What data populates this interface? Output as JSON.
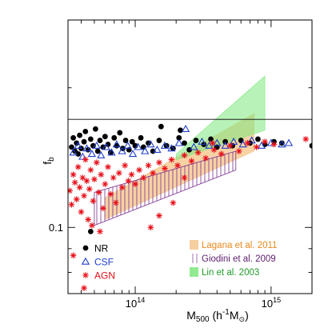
{
  "chart_data": {
    "type": "scatter",
    "xlabel": {
      "base": "M",
      "sub": "500",
      "rest_open": " (h",
      "sup": "-1",
      "unit": "M",
      "rest_close": ")"
    },
    "ylabel": {
      "base": "f",
      "sub": "b"
    },
    "x_scale": "log",
    "y_scale": "log",
    "xlim": [
      32000000000000.0,
      2000000000000000.0
    ],
    "ylim": [
      0.072,
      0.28
    ],
    "x_ticks": [
      {
        "value": 100000000000000.0,
        "base": "10",
        "exp": "14"
      },
      {
        "value": 1000000000000000.0,
        "base": "10",
        "exp": "15"
      }
    ],
    "y_ticks": [
      {
        "value": 0.1,
        "label": "0.1"
      }
    ],
    "cosmic_fb_line": 0.171,
    "series": [
      {
        "name": "NR",
        "marker": "filled-circle",
        "color": "#000000",
        "points": [
          [
            34000000000000.0,
            0.149
          ],
          [
            35000000000000.0,
            0.156
          ],
          [
            36000000000000.0,
            0.146
          ],
          [
            37000000000000.0,
            0.152
          ],
          [
            38000000000000.0,
            0.144
          ],
          [
            39000000000000.0,
            0.158
          ],
          [
            40000000000000.0,
            0.148
          ],
          [
            42000000000000.0,
            0.153
          ],
          [
            43000000000000.0,
            0.161
          ],
          [
            45000000000000.0,
            0.147
          ],
          [
            47000000000000.0,
            0.155
          ],
          [
            49000000000000.0,
            0.15
          ],
          [
            51000000000000.0,
            0.163
          ],
          [
            53000000000000.0,
            0.146
          ],
          [
            55000000000000.0,
            0.154
          ],
          [
            58000000000000.0,
            0.149
          ],
          [
            60000000000000.0,
            0.157
          ],
          [
            63000000000000.0,
            0.151
          ],
          [
            66000000000000.0,
            0.145
          ],
          [
            70000000000000.0,
            0.156
          ],
          [
            73000000000000.0,
            0.15
          ],
          [
            77000000000000.0,
            0.16
          ],
          [
            81000000000000.0,
            0.148
          ],
          [
            85000000000000.0,
            0.154
          ],
          [
            90000000000000.0,
            0.147
          ],
          [
            95000000000000.0,
            0.153
          ],
          [
            100000000000000.0,
            0.15
          ],
          [
            110000000000000.0,
            0.156
          ],
          [
            115000000000000.0,
            0.149
          ],
          [
            125000000000000.0,
            0.152
          ],
          [
            135000000000000.0,
            0.146
          ],
          [
            150000000000000.0,
            0.154
          ],
          [
            170000000000000.0,
            0.15
          ],
          [
            190000000000000.0,
            0.148
          ],
          [
            210000000000000.0,
            0.156
          ],
          [
            230000000000000.0,
            0.152
          ],
          [
            250000000000000.0,
            0.147
          ],
          [
            280000000000000.0,
            0.154
          ],
          [
            320000000000000.0,
            0.151
          ],
          [
            360000000000000.0,
            0.155
          ],
          [
            400000000000000.0,
            0.149
          ],
          [
            460000000000000.0,
            0.153
          ],
          [
            520000000000000.0,
            0.15
          ],
          [
            600000000000000.0,
            0.154
          ],
          [
            700000000000000.0,
            0.152
          ],
          [
            800000000000000.0,
            0.155
          ],
          [
            900000000000000.0,
            0.151
          ],
          [
            1050000000000000.0,
            0.153
          ],
          [
            1200000000000000.0,
            0.152
          ],
          [
            2000000000000000.0,
            0.15
          ],
          [
            155000000000000.0,
            0.165
          ],
          [
            215000000000000.0,
            0.162
          ],
          [
            47000000000000.0,
            0.098
          ]
        ]
      },
      {
        "name": "CSF",
        "marker": "open-triangle",
        "color": "#1f3fcc",
        "points": [
          [
            35000000000000.0,
            0.145
          ],
          [
            38000000000000.0,
            0.15
          ],
          [
            41000000000000.0,
            0.142
          ],
          [
            44000000000000.0,
            0.148
          ],
          [
            48000000000000.0,
            0.144
          ],
          [
            52000000000000.0,
            0.15
          ],
          [
            56000000000000.0,
            0.143
          ],
          [
            61000000000000.0,
            0.149
          ],
          [
            67000000000000.0,
            0.145
          ],
          [
            73000000000000.0,
            0.151
          ],
          [
            80000000000000.0,
            0.146
          ],
          [
            88000000000000.0,
            0.15
          ],
          [
            96000000000000.0,
            0.144
          ],
          [
            105000000000000.0,
            0.149
          ],
          [
            118000000000000.0,
            0.146
          ],
          [
            130000000000000.0,
            0.151
          ],
          [
            145000000000000.0,
            0.147
          ],
          [
            165000000000000.0,
            0.15
          ],
          [
            185000000000000.0,
            0.148
          ],
          [
            210000000000000.0,
            0.152
          ],
          [
            235000000000000.0,
            0.163
          ],
          [
            270000000000000.0,
            0.149
          ],
          [
            310000000000000.0,
            0.153
          ],
          [
            350000000000000.0,
            0.15
          ],
          [
            400000000000000.0,
            0.152
          ],
          [
            460000000000000.0,
            0.15
          ],
          [
            530000000000000.0,
            0.153
          ],
          [
            620000000000000.0,
            0.151
          ],
          [
            720000000000000.0,
            0.154
          ],
          [
            850000000000000.0,
            0.15
          ],
          [
            1000000000000000.0,
            0.152
          ],
          [
            1200000000000000.0,
            0.151
          ],
          [
            1350000000000000.0,
            0.152
          ]
        ]
      },
      {
        "name": "AGN",
        "marker": "asterisk",
        "color": "#e8101a",
        "points": [
          [
            33000000000000.0,
            0.12
          ],
          [
            34000000000000.0,
            0.112
          ],
          [
            35000000000000.0,
            0.13
          ],
          [
            36000000000000.0,
            0.125
          ],
          [
            37000000000000.0,
            0.115
          ],
          [
            38000000000000.0,
            0.135
          ],
          [
            39000000000000.0,
            0.122
          ],
          [
            40000000000000.0,
            0.108
          ],
          [
            41000000000000.0,
            0.128
          ],
          [
            42000000000000.0,
            0.117
          ],
          [
            43000000000000.0,
            0.14
          ],
          [
            44000000000000.0,
            0.126
          ],
          [
            45000000000000.0,
            0.104
          ],
          [
            46000000000000.0,
            0.121
          ],
          [
            47000000000000.0,
            0.133
          ],
          [
            49000000000000.0,
            0.114
          ],
          [
            50000000000000.0,
            0.127
          ],
          [
            52000000000000.0,
            0.138
          ],
          [
            54000000000000.0,
            0.119
          ],
          [
            56000000000000.0,
            0.13
          ],
          [
            58000000000000.0,
            0.11
          ],
          [
            60000000000000.0,
            0.124
          ],
          [
            63000000000000.0,
            0.135
          ],
          [
            66000000000000.0,
            0.118
          ],
          [
            69000000000000.0,
            0.128
          ],
          [
            72000000000000.0,
            0.113
          ],
          [
            76000000000000.0,
            0.131
          ],
          [
            80000000000000.0,
            0.122
          ],
          [
            84000000000000.0,
            0.136
          ],
          [
            89000000000000.0,
            0.126
          ],
          [
            94000000000000.0,
            0.13
          ],
          [
            100000000000000.0,
            0.124
          ],
          [
            107000000000000.0,
            0.133
          ],
          [
            115000000000000.0,
            0.128
          ],
          [
            125000000000000.0,
            0.136
          ],
          [
            135000000000000.0,
            0.131
          ],
          [
            150000000000000.0,
            0.138
          ],
          [
            165000000000000.0,
            0.134
          ],
          [
            185000000000000.0,
            0.14
          ],
          [
            205000000000000.0,
            0.136
          ],
          [
            230000000000000.0,
            0.143
          ],
          [
            260000000000000.0,
            0.139
          ],
          [
            290000000000000.0,
            0.145
          ],
          [
            330000000000000.0,
            0.141
          ],
          [
            380000000000000.0,
            0.147
          ],
          [
            430000000000000.0,
            0.144
          ],
          [
            500000000000000.0,
            0.15
          ],
          [
            580000000000000.0,
            0.146
          ],
          [
            670000000000000.0,
            0.152
          ],
          [
            780000000000000.0,
            0.149
          ],
          [
            900000000000000.0,
            0.153
          ],
          [
            1050000000000000.0,
            0.151
          ],
          [
            1800000000000000.0,
            0.155
          ],
          [
            130000000000000.0,
            0.1
          ],
          [
            150000000000000.0,
            0.106
          ],
          [
            190000000000000.0,
            0.113
          ],
          [
            35000000000000.0,
            0.087
          ],
          [
            42000000000000.0,
            0.074
          ],
          [
            230000000000000.0,
            0.128
          ],
          [
            370000000000000.0,
            0.152
          ],
          [
            48000000000000.0,
            0.101
          ],
          [
            55000000000000.0,
            0.098
          ]
        ]
      }
    ],
    "bands": [
      {
        "name": "Lagana et al. 2011",
        "style": "solid-fill",
        "color": "#f5c78e",
        "opacity": 0.8,
        "lower": [
          [
            60000000000000.0,
            0.104
          ],
          [
            750000000000000.0,
            0.146
          ]
        ],
        "upper": [
          [
            60000000000000.0,
            0.116
          ],
          [
            750000000000000.0,
            0.176
          ]
        ]
      },
      {
        "name": "Giodini et al. 2009",
        "style": "hatched",
        "color": "#7b2f8f",
        "opacity": 1,
        "lower": [
          [
            50000000000000.0,
            0.101
          ],
          [
            550000000000000.0,
            0.133
          ]
        ],
        "upper": [
          [
            50000000000000.0,
            0.119
          ],
          [
            550000000000000.0,
            0.146
          ]
        ]
      },
      {
        "name": "Lin et al. 2003",
        "style": "solid-fill",
        "color": "#7de87d",
        "opacity": 0.55,
        "lower": [
          [
            200000000000000.0,
            0.14
          ],
          [
            900000000000000.0,
            0.162
          ]
        ],
        "upper": [
          [
            200000000000000.0,
            0.144
          ],
          [
            900000000000000.0,
            0.212
          ]
        ]
      }
    ],
    "legend": {
      "left": [
        {
          "label": "NR",
          "marker": "filled-circle",
          "color": "#000000",
          "text_color": "#000000"
        },
        {
          "label": "CSF",
          "marker": "open-triangle",
          "color": "#1f3fcc",
          "text_color": "#1f3fcc"
        },
        {
          "label": "AGN",
          "marker": "asterisk",
          "color": "#e8101a",
          "text_color": "#e8101a"
        }
      ],
      "right": [
        {
          "label": "Lagana et al. 2011",
          "swatch": "solid",
          "color": "#f5c78e",
          "text_color": "#e8891c"
        },
        {
          "label": "Giodini et al. 2009",
          "swatch": "hatched",
          "color": "#7b2f8f",
          "text_color": "#5c1d6c"
        },
        {
          "label": "Lin et al. 2003",
          "swatch": "solid",
          "color": "#7de87d",
          "text_color": "#1e9c2a"
        }
      ]
    },
    "grid": false
  }
}
